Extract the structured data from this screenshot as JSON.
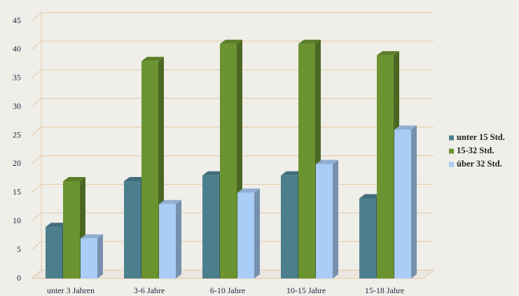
{
  "chart_data": {
    "type": "bar3d",
    "categories": [
      "unter 3 Jahren",
      "3-6 Jahre",
      "6-10 Jahre",
      "10-15 Jahre",
      "15-18 Jahre"
    ],
    "series": [
      {
        "name": "unter 15 Std.",
        "color": "#4c7f8e",
        "values": [
          9,
          17,
          18,
          18,
          14
        ]
      },
      {
        "name": "15-32 Std.",
        "color": "#6b9430",
        "values": [
          17,
          38,
          41,
          41,
          39
        ]
      },
      {
        "name": "über 32 Std.",
        "color": "#a9cdf7",
        "values": [
          7,
          13,
          15,
          20,
          26
        ]
      }
    ],
    "ylim": [
      0,
      45
    ],
    "yticks": [
      0,
      5,
      10,
      15,
      20,
      25,
      30,
      35,
      40,
      45
    ],
    "grid": true
  }
}
